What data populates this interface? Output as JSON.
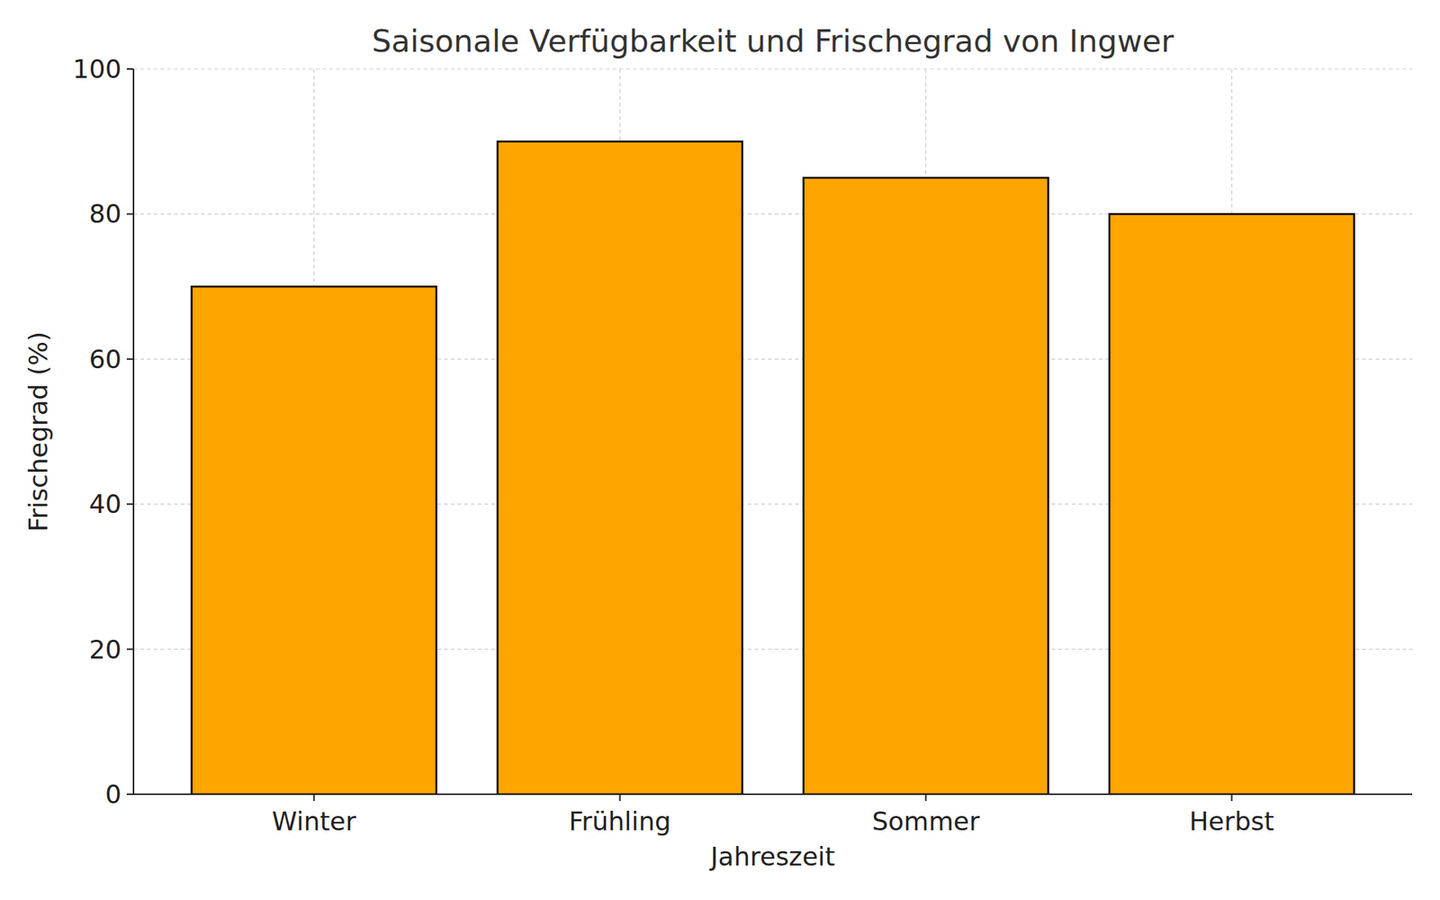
{
  "chart_data": {
    "type": "bar",
    "title": "Saisonale Verfügbarkeit und Frischegrad von Ingwer",
    "x_label": "Jahreszeit",
    "y_label": "Frischegrad (%)",
    "categories": [
      "Winter",
      "Frühling",
      "Sommer",
      "Herbst"
    ],
    "values": [
      70,
      90,
      85,
      80
    ],
    "color": "#FFA500",
    "ylim": [
      0,
      100
    ],
    "yticks": [
      0,
      20,
      40,
      60,
      80,
      100
    ],
    "grid": true
  }
}
